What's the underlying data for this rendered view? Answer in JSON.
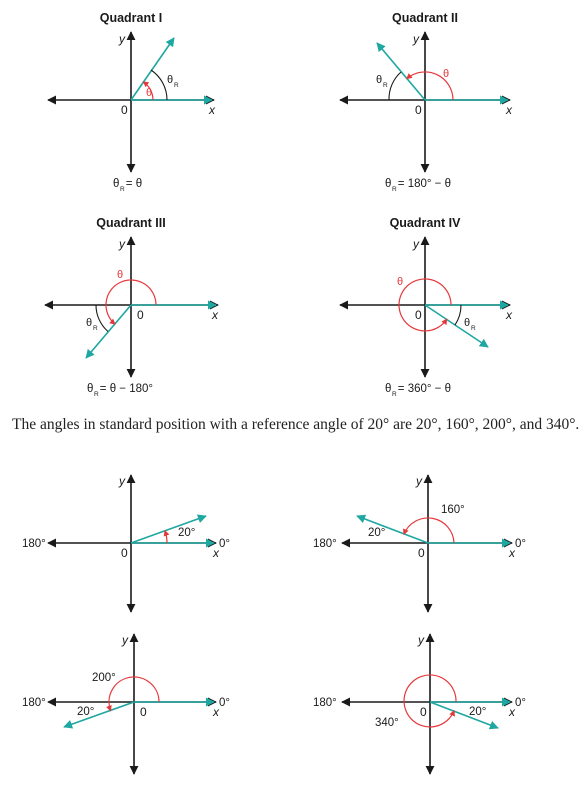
{
  "colors": {
    "axis": "#1a1a1a",
    "terminal": "#1fa7a1",
    "theta": "#e5383b",
    "ref": "#1a1a1a"
  },
  "quadrants": [
    {
      "title": "Quadrant I",
      "theta": "θ",
      "theta_r": "θ",
      "r": "R",
      "formula": "θ  = θ",
      "y": "y",
      "x": "x",
      "origin": "0"
    },
    {
      "title": "Quadrant II",
      "theta": "θ",
      "theta_r": "θ",
      "r": "R",
      "formula": "θ  = 180° − θ",
      "y": "y",
      "x": "x",
      "origin": "0"
    },
    {
      "title": "Quadrant III",
      "theta": "θ",
      "theta_r": "θ",
      "r": "R",
      "formula": "θ  = θ − 180°",
      "y": "y",
      "x": "x",
      "origin": "0"
    },
    {
      "title": "Quadrant IV",
      "theta": "θ",
      "theta_r": "θ",
      "r": "R",
      "formula": "θ  = 360° − θ",
      "y": "y",
      "x": "x",
      "origin": "0"
    }
  ],
  "paragraph": "The angles in standard position with a reference angle of 20° are 20°, 160°, 200°, and 340°.",
  "examples": [
    {
      "angle": "20°",
      "ref": "",
      "left": "180°",
      "right": "0°",
      "y": "y",
      "x": "x",
      "origin": "0"
    },
    {
      "angle": "160°",
      "ref": "20°",
      "left": "180°",
      "right": "0°",
      "y": "y",
      "x": "x",
      "origin": "0"
    },
    {
      "angle": "200°",
      "ref": "20°",
      "left": "180°",
      "right": "0°",
      "y": "y",
      "x": "x",
      "origin": "0"
    },
    {
      "angle": "340°",
      "ref": "20°",
      "left": "180°",
      "right": "0°",
      "y": "y",
      "x": "x",
      "origin": "0"
    }
  ]
}
